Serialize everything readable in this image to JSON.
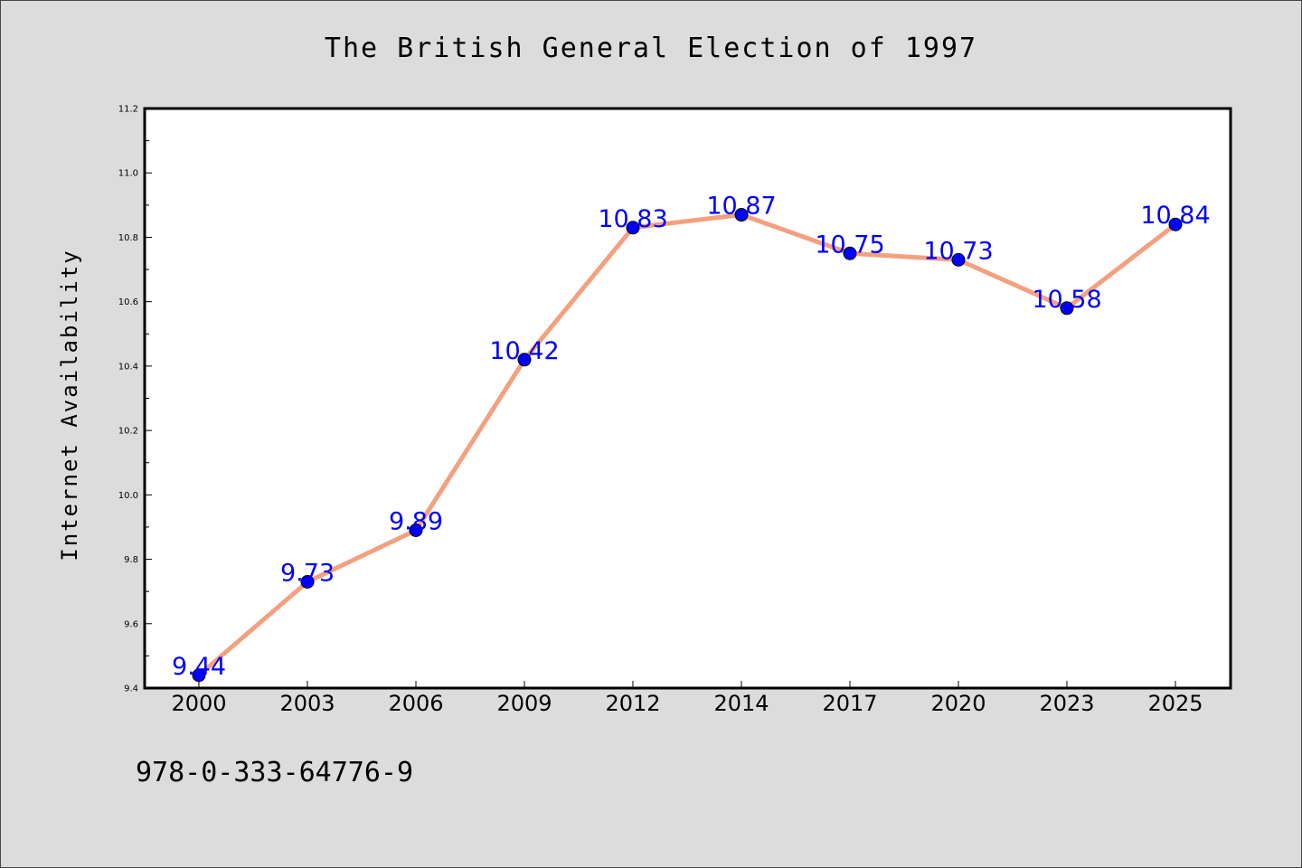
{
  "chart_data": {
    "type": "line",
    "title": "The British General Election of 1997",
    "xlabel": "",
    "ylabel": "Internet Availability",
    "categories": [
      "2000",
      "2003",
      "2006",
      "2009",
      "2012",
      "2014",
      "2017",
      "2020",
      "2023",
      "2025"
    ],
    "series": [
      {
        "values": [
          9.44,
          9.73,
          9.89,
          10.42,
          10.83,
          10.87,
          10.75,
          10.73,
          10.58,
          10.84
        ],
        "labels": [
          "9.44",
          "9.73",
          "9.89",
          "10.42",
          "10.83",
          "10.87",
          "10.75",
          "10.73",
          "10.58",
          "10.84"
        ],
        "line_color": "#f4a07f",
        "marker_color": "#0000ff"
      }
    ],
    "ylim": [
      9.4,
      11.2
    ],
    "yticks": [
      "9.4",
      "9.6",
      "9.8",
      "10.0",
      "10.2",
      "10.4",
      "10.6",
      "10.8",
      "11.0",
      "11.2"
    ],
    "grid": false,
    "legend": "none"
  },
  "footer": {
    "text": "978-0-333-64776-9"
  },
  "colors": {
    "background": "#dcdcdc",
    "plot_background": "#ffffff",
    "line": "#f4a07f",
    "marker": "#0000ff",
    "data_label": "#0000ff"
  }
}
